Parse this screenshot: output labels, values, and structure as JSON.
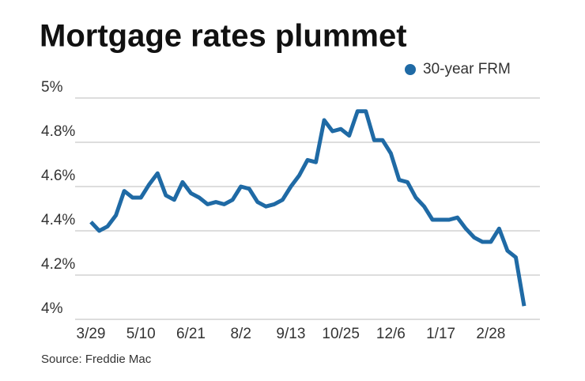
{
  "chart_data": {
    "type": "line",
    "title": "Mortgage rates plummet",
    "source": "Source: Freddie Mac",
    "categories": [
      "3/29",
      null,
      null,
      null,
      null,
      null,
      "5/10",
      null,
      null,
      null,
      null,
      null,
      "6/21",
      null,
      null,
      null,
      null,
      null,
      "8/2",
      null,
      null,
      null,
      null,
      null,
      "9/13",
      null,
      null,
      null,
      null,
      null,
      "10/25",
      null,
      null,
      null,
      null,
      null,
      "12/6",
      null,
      null,
      null,
      null,
      null,
      "1/17",
      null,
      null,
      null,
      null,
      null,
      "2/28",
      null,
      null,
      null,
      null
    ],
    "series": [
      {
        "name": "30-year FRM",
        "color": "#1f6aa5",
        "values": [
          4.44,
          4.4,
          4.42,
          4.47,
          4.58,
          4.55,
          4.55,
          4.61,
          4.66,
          4.56,
          4.54,
          4.62,
          4.57,
          4.55,
          4.52,
          4.53,
          4.52,
          4.54,
          4.6,
          4.59,
          4.53,
          4.51,
          4.52,
          4.54,
          4.6,
          4.65,
          4.72,
          4.71,
          4.9,
          4.85,
          4.86,
          4.83,
          4.94,
          4.94,
          4.81,
          4.81,
          4.75,
          4.63,
          4.62,
          4.55,
          4.51,
          4.45,
          4.45,
          4.45,
          4.46,
          4.41,
          4.37,
          4.35,
          4.35,
          4.41,
          4.31,
          4.28,
          4.06
        ]
      }
    ],
    "ylim": [
      4,
      5
    ],
    "yticks": [
      {
        "value": 4,
        "label": "4%"
      },
      {
        "value": 4.2,
        "label": "4.2%"
      },
      {
        "value": 4.4,
        "label": "4.4%"
      },
      {
        "value": 4.6,
        "label": "4.6%"
      },
      {
        "value": 4.8,
        "label": "4.8%"
      },
      {
        "value": 5,
        "label": "5%"
      }
    ],
    "grid": true,
    "legend": "top-right"
  }
}
